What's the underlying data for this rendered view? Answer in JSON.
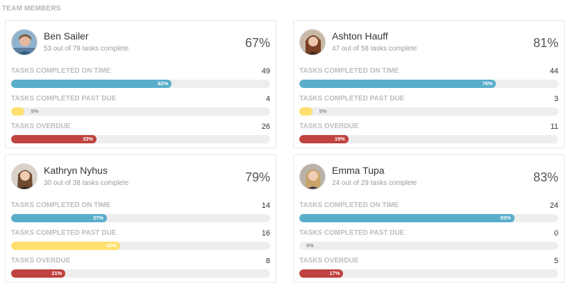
{
  "section_title": "TEAM MEMBERS",
  "colors": {
    "on_time": "#5aaecb",
    "past_due": "#ffe06e",
    "overdue": "#c0423e",
    "track": "#eeeeee"
  },
  "members": [
    {
      "name": "Ben Sailer",
      "summary": "53 out of 79 tasks complete",
      "percent": "67%",
      "metrics": [
        {
          "label": "TASKS COMPLETED ON TIME",
          "count": "49",
          "percent_label": "62%",
          "percent": 62,
          "color": "blue"
        },
        {
          "label": "TASKS COMPLETED PAST DUE",
          "count": "4",
          "percent_label": "5%",
          "percent": 5,
          "color": "yellow"
        },
        {
          "label": "TASKS OVERDUE",
          "count": "26",
          "percent_label": "33%",
          "percent": 33,
          "color": "red"
        }
      ]
    },
    {
      "name": "Ashton Hauff",
      "summary": "47 out of 58 tasks complete",
      "percent": "81%",
      "metrics": [
        {
          "label": "TASKS COMPLETED ON TIME",
          "count": "44",
          "percent_label": "76%",
          "percent": 76,
          "color": "blue"
        },
        {
          "label": "TASKS COMPLETED PAST DUE",
          "count": "3",
          "percent_label": "5%",
          "percent": 5,
          "color": "yellow"
        },
        {
          "label": "TASKS OVERDUE",
          "count": "11",
          "percent_label": "19%",
          "percent": 19,
          "color": "red"
        }
      ]
    },
    {
      "name": "Kathryn Nyhus",
      "summary": "30 out of 38 tasks complete",
      "percent": "79%",
      "metrics": [
        {
          "label": "TASKS COMPLETED ON TIME",
          "count": "14",
          "percent_label": "37%",
          "percent": 37,
          "color": "blue"
        },
        {
          "label": "TASKS COMPLETED PAST DUE",
          "count": "16",
          "percent_label": "42%",
          "percent": 42,
          "color": "yellow"
        },
        {
          "label": "TASKS OVERDUE",
          "count": "8",
          "percent_label": "21%",
          "percent": 21,
          "color": "red"
        }
      ]
    },
    {
      "name": "Emma Tupa",
      "summary": "24 out of 29 tasks complete",
      "percent": "83%",
      "metrics": [
        {
          "label": "TASKS COMPLETED ON TIME",
          "count": "24",
          "percent_label": "83%",
          "percent": 83,
          "color": "blue"
        },
        {
          "label": "TASKS COMPLETED PAST DUE",
          "count": "0",
          "percent_label": "0%",
          "percent": 0,
          "color": "yellow"
        },
        {
          "label": "TASKS OVERDUE",
          "count": "5",
          "percent_label": "17%",
          "percent": 17,
          "color": "red"
        }
      ]
    }
  ]
}
